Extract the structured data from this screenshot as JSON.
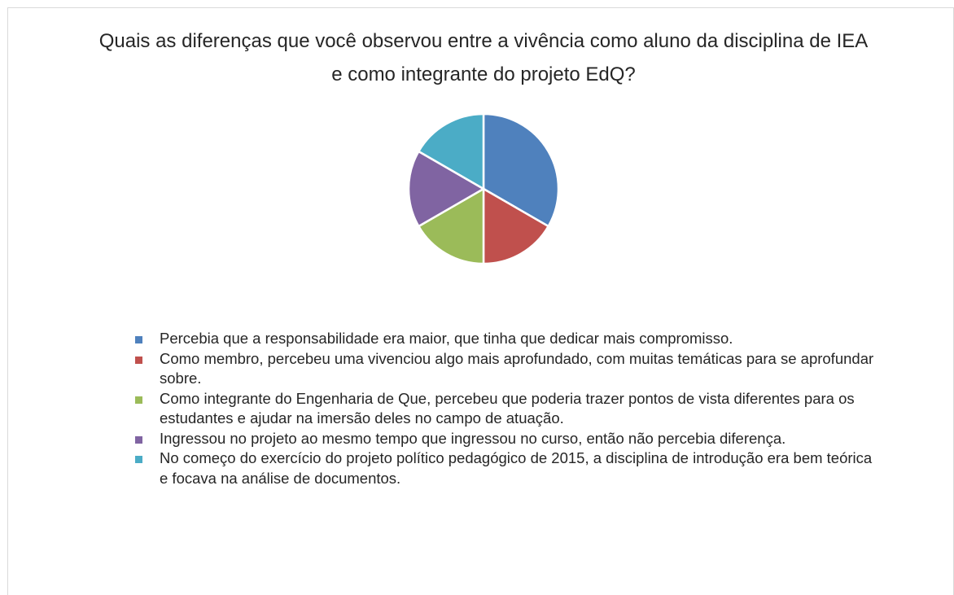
{
  "chart_data": {
    "type": "pie",
    "title": "Quais as diferenças que você observou entre a vivência como aluno da disciplina de IEA e como integrante do projeto EdQ?",
    "series": [
      {
        "name": "Percebia que a responsabilidade era maior, que tinha que dedicar mais compromisso.",
        "color": "#4f81bd",
        "values": [
          2
        ]
      },
      {
        "name": "Como membro, percebeu uma vivenciou algo mais aprofundado, com muitas temáticas para se aprofundar sobre.",
        "color": "#c0504d",
        "values": [
          1
        ]
      },
      {
        "name": "Como integrante do Engenharia de Que, percebeu que poderia trazer pontos de vista diferentes para os estudantes e ajudar na imersão deles no campo de atuação.",
        "color": "#9bbb59",
        "values": [
          1
        ]
      },
      {
        "name": "Ingressou no projeto ao mesmo tempo que ingressou no curso, então não percebia diferença.",
        "color": "#8064a2",
        "values": [
          1
        ]
      },
      {
        "name": "No começo do exercício do projeto político pedagógico de 2015, a disciplina de introdução era bem teórica e focava na análise de documentos.",
        "color": "#4bacc6",
        "values": [
          1
        ]
      }
    ],
    "legend": "bottom"
  }
}
